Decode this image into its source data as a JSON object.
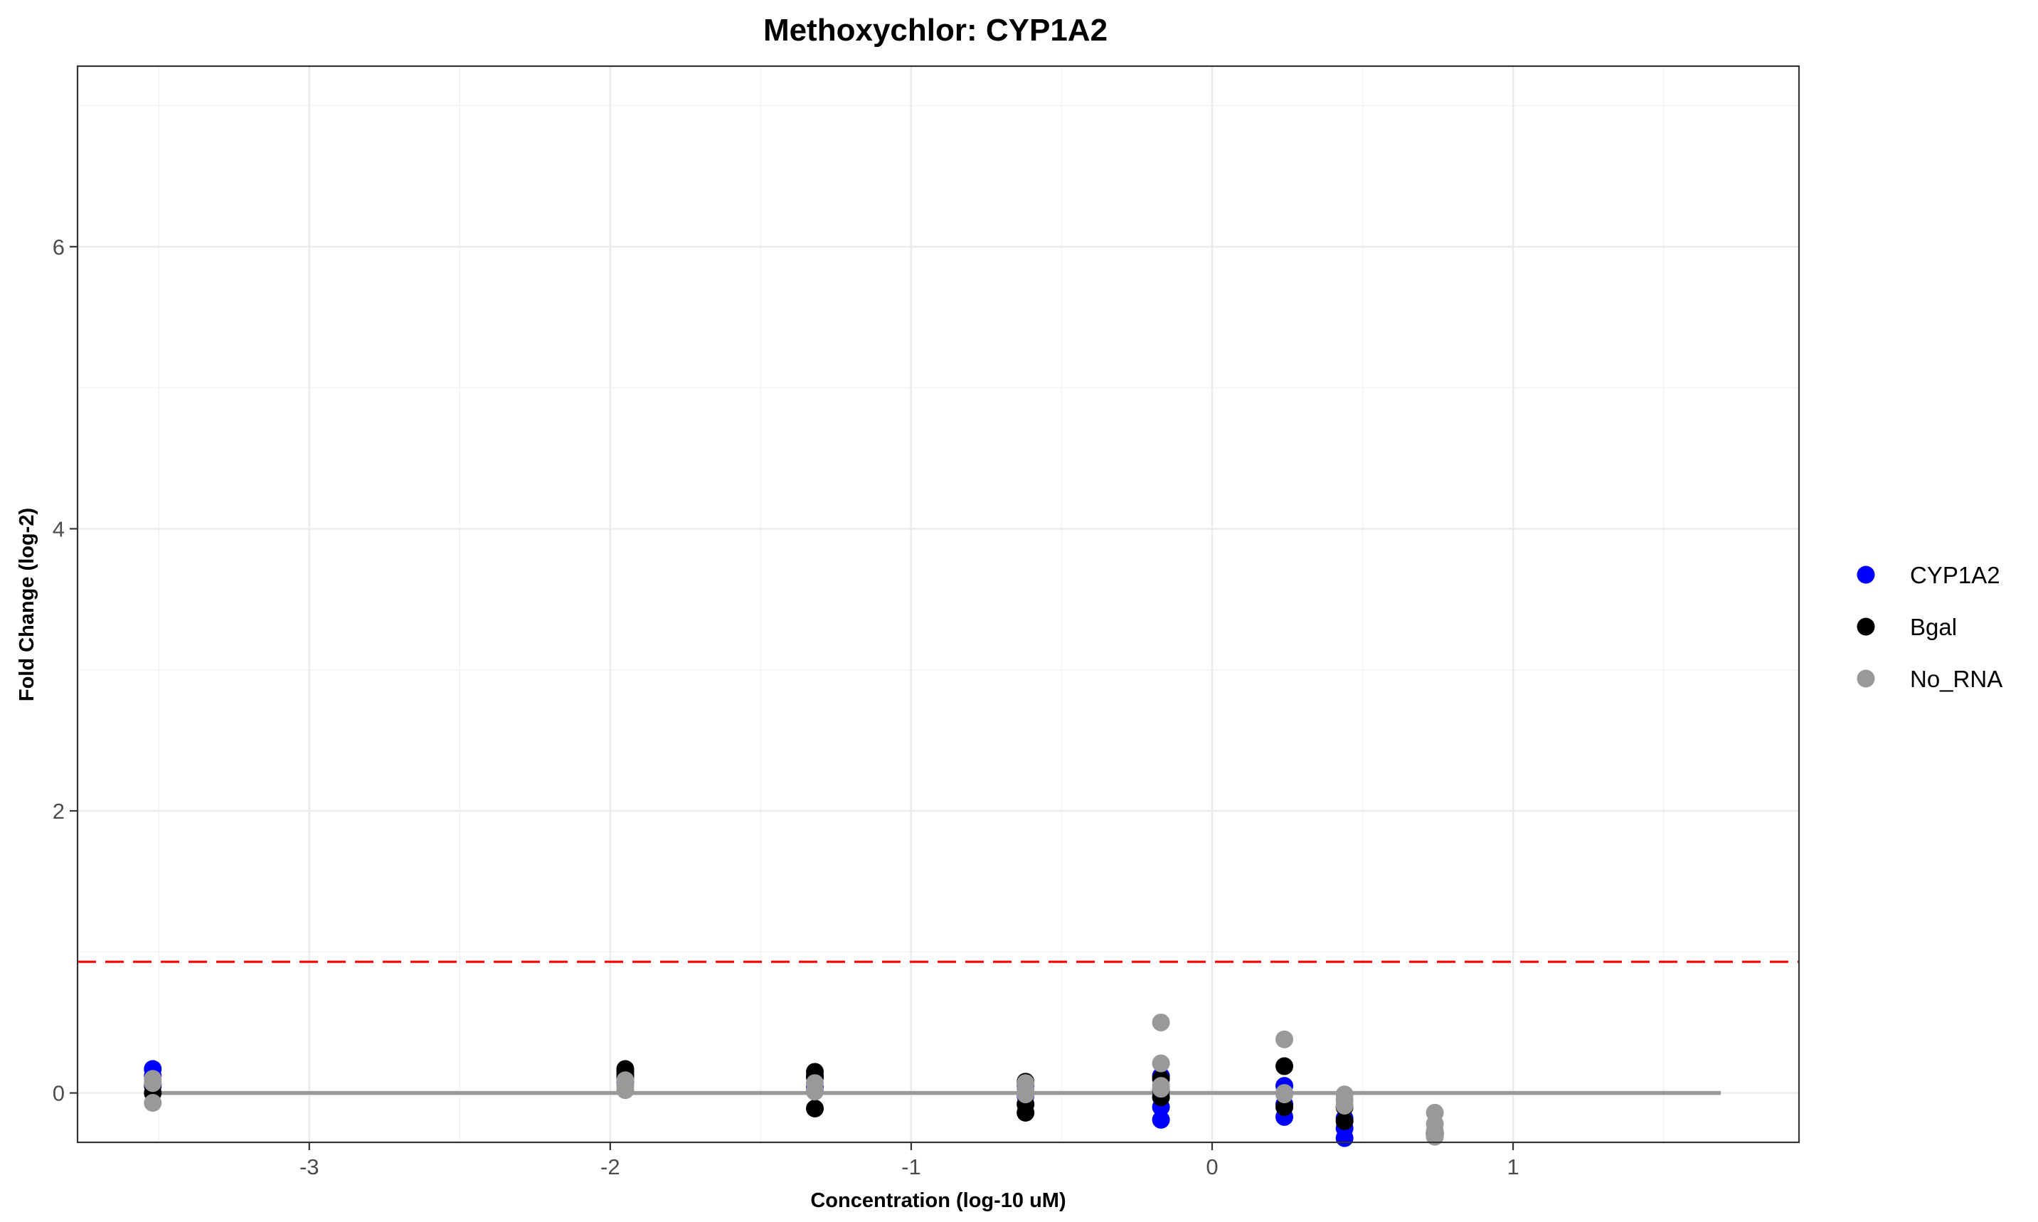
{
  "chart_data": {
    "type": "scatter",
    "title": "Methoxychlor: CYP1A2",
    "xlabel": "Concentration (log-10 uM)",
    "ylabel": "Fold Change (log-2)",
    "xlim": [
      -3.77,
      1.95
    ],
    "ylim": [
      -0.35,
      7.28
    ],
    "x_ticks": [
      -3,
      -2,
      -1,
      0,
      1
    ],
    "x_tick_labels": [
      "-3",
      "-2",
      "-1",
      "0",
      "1"
    ],
    "y_ticks": [
      0,
      2,
      4,
      6
    ],
    "y_tick_labels": [
      "0",
      "2",
      "4",
      "6"
    ],
    "grid": true,
    "legend_position": "right",
    "threshold_line": {
      "y": 0.93,
      "color": "#ff0000",
      "style": "dashed"
    },
    "fit_line": {
      "x": [
        -3.52,
        1.69
      ],
      "y": [
        0,
        0
      ],
      "color": "#999999"
    },
    "series": [
      {
        "name": "CYP1A2",
        "color": "#0000ff",
        "points": [
          [
            -3.52,
            0.17
          ],
          [
            -3.52,
            0.12
          ],
          [
            -3.52,
            0.05
          ],
          [
            -1.95,
            0.13
          ],
          [
            -1.95,
            0.08
          ],
          [
            -1.32,
            0.12
          ],
          [
            -1.32,
            0.04
          ],
          [
            -0.62,
            0.05
          ],
          [
            -0.62,
            -0.02
          ],
          [
            -0.17,
            0.12
          ],
          [
            -0.17,
            -0.1
          ],
          [
            -0.17,
            -0.19
          ],
          [
            0.24,
            0.05
          ],
          [
            0.24,
            -0.08
          ],
          [
            0.24,
            -0.17
          ],
          [
            0.44,
            -0.18
          ],
          [
            0.44,
            -0.25
          ],
          [
            0.44,
            -0.32
          ],
          [
            0.74,
            -0.3
          ]
        ]
      },
      {
        "name": "Bgal",
        "color": "#000000",
        "points": [
          [
            -3.52,
            0.0
          ],
          [
            -3.52,
            0.06
          ],
          [
            -1.95,
            0.17
          ],
          [
            -1.95,
            0.15
          ],
          [
            -1.95,
            0.11
          ],
          [
            -1.32,
            0.15
          ],
          [
            -1.32,
            0.11
          ],
          [
            -1.32,
            -0.11
          ],
          [
            -0.62,
            0.08
          ],
          [
            -0.62,
            -0.08
          ],
          [
            -0.62,
            -0.14
          ],
          [
            -0.17,
            0.1
          ],
          [
            -0.17,
            0.02
          ],
          [
            -0.17,
            -0.03
          ],
          [
            0.24,
            0.19
          ],
          [
            0.24,
            -0.1
          ],
          [
            0.44,
            -0.1
          ],
          [
            0.44,
            -0.2
          ],
          [
            0.74,
            -0.28
          ]
        ]
      },
      {
        "name": "No_RNA",
        "color": "#999999",
        "points": [
          [
            -3.52,
            0.1
          ],
          [
            -3.52,
            0.07
          ],
          [
            -3.52,
            -0.07
          ],
          [
            -1.95,
            0.09
          ],
          [
            -1.95,
            0.05
          ],
          [
            -1.95,
            0.02
          ],
          [
            -1.32,
            0.07
          ],
          [
            -1.32,
            0.02
          ],
          [
            -1.32,
            0.01
          ],
          [
            -0.62,
            0.07
          ],
          [
            -0.62,
            0.03
          ],
          [
            -0.62,
            -0.01
          ],
          [
            -0.17,
            0.5
          ],
          [
            -0.17,
            0.21
          ],
          [
            -0.17,
            0.05
          ],
          [
            -0.17,
            0.03
          ],
          [
            0.24,
            0.38
          ],
          [
            0.24,
            0.0
          ],
          [
            0.24,
            -0.01
          ],
          [
            0.44,
            -0.01
          ],
          [
            0.44,
            -0.05
          ],
          [
            0.44,
            -0.09
          ],
          [
            0.74,
            -0.14
          ],
          [
            0.74,
            -0.22
          ],
          [
            0.74,
            -0.27
          ],
          [
            0.74,
            -0.31
          ]
        ]
      }
    ]
  }
}
